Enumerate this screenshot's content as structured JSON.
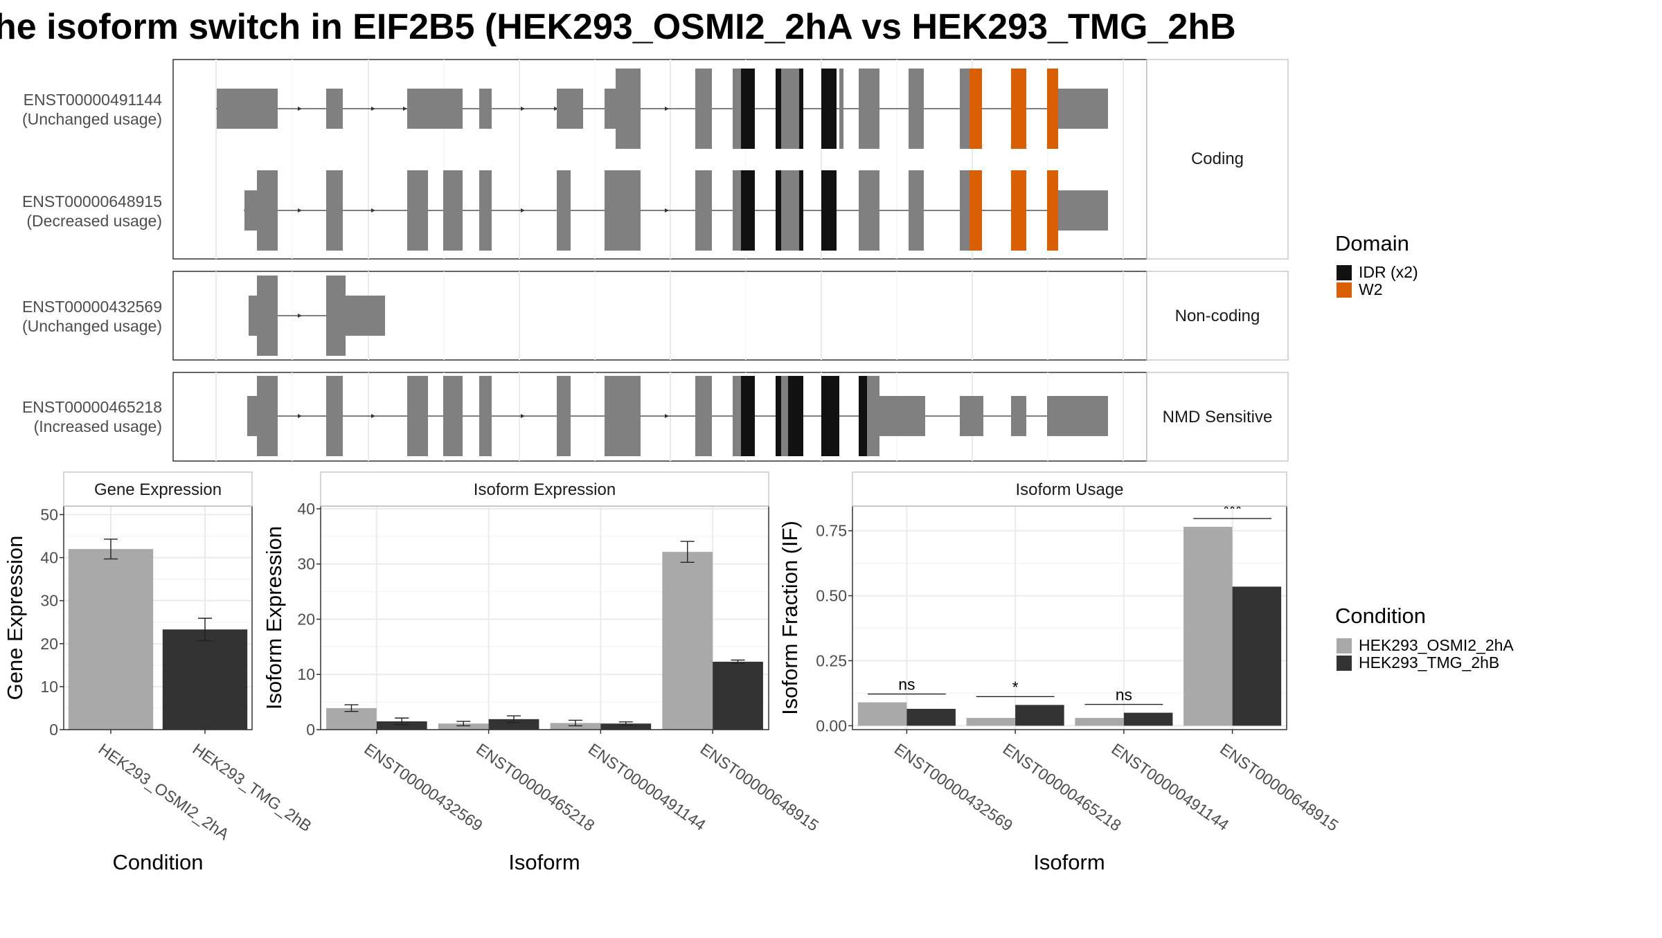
{
  "title": "he isoform switch in EIF2B5 (HEK293_OSMI2_2hA vs HEK293_TMG_2hB",
  "colors": {
    "exon": "#808080",
    "idr": "#111111",
    "w2": "#D95F02",
    "cond1": "#A9A9A9",
    "cond2": "#333333",
    "grid": "#EBEBEB",
    "strip_border": "#C8C8C8"
  },
  "legends": {
    "domain": {
      "title": "Domain",
      "items": [
        {
          "label": "IDR (x2)",
          "color": "#111111"
        },
        {
          "label": "W2",
          "color": "#D95F02"
        }
      ]
    },
    "condition": {
      "title": "Condition",
      "items": [
        {
          "label": "HEK293_OSMI2_2hA",
          "color": "#A9A9A9"
        },
        {
          "label": "HEK293_TMG_2hB",
          "color": "#333333"
        }
      ]
    }
  },
  "transcripts": {
    "panels": [
      {
        "label": "Coding",
        "tracks": [
          {
            "id": "ENST00000491144",
            "usage": "(Unchanged usage)"
          },
          {
            "id": "ENST00000648915",
            "usage": "(Decreased usage)"
          }
        ]
      },
      {
        "label": "Non-coding",
        "tracks": [
          {
            "id": "ENST00000432569",
            "usage": "(Unchanged usage)"
          }
        ]
      },
      {
        "label": "NMD Sensitive",
        "tracks": [
          {
            "id": "ENST00000465218",
            "usage": "(Increased usage)"
          }
        ]
      }
    ]
  },
  "chart_data": [
    {
      "type": "bar",
      "title": "Gene Expression",
      "xlabel": "Condition",
      "ylabel": "Gene Expression",
      "categories": [
        "HEK293_OSMI2_2hA",
        "HEK293_TMG_2hB"
      ],
      "values": [
        42.0,
        23.3
      ],
      "error": [
        2.3,
        2.6
      ],
      "ylim": [
        0,
        52
      ],
      "yticks": [
        "0",
        "10",
        "20",
        "30",
        "40",
        "50"
      ],
      "ytick_values": [
        0,
        10,
        20,
        30,
        40,
        50
      ]
    },
    {
      "type": "bar",
      "title": "Isoform Expression",
      "xlabel": "Isoform",
      "ylabel": "Isoform Expression",
      "categories": [
        "ENST00000432569",
        "ENST00000465218",
        "ENST00000491144",
        "ENST00000648915"
      ],
      "series": [
        {
          "name": "HEK293_OSMI2_2hA",
          "values": [
            3.9,
            1.1,
            1.2,
            32.2
          ],
          "error": [
            0.6,
            0.4,
            0.5,
            1.9
          ]
        },
        {
          "name": "HEK293_TMG_2hB",
          "values": [
            1.5,
            1.9,
            1.1,
            12.3
          ],
          "error": [
            0.6,
            0.6,
            0.3,
            0.3
          ]
        }
      ],
      "ylim": [
        0,
        40.5
      ],
      "yticks": [
        "0",
        "10",
        "20",
        "30",
        "40"
      ],
      "ytick_values": [
        0,
        10,
        20,
        30,
        40
      ]
    },
    {
      "type": "bar",
      "title": "Isoform Usage",
      "xlabel": "Isoform",
      "ylabel": "Isoform Fraction (IF)",
      "categories": [
        "ENST00000432569",
        "ENST00000465218",
        "ENST00000491144",
        "ENST00000648915"
      ],
      "series": [
        {
          "name": "HEK293_OSMI2_2hA",
          "values": [
            0.09,
            0.03,
            0.03,
            0.765
          ]
        },
        {
          "name": "HEK293_TMG_2hB",
          "values": [
            0.065,
            0.08,
            0.05,
            0.535
          ]
        }
      ],
      "significance": [
        "ns",
        "*",
        "ns",
        "***"
      ],
      "ylim": [
        -0.015,
        0.845
      ],
      "yticks": [
        "0.00",
        "0.25",
        "0.50",
        "0.75"
      ],
      "ytick_values": [
        0,
        0.25,
        0.5,
        0.75
      ]
    }
  ]
}
